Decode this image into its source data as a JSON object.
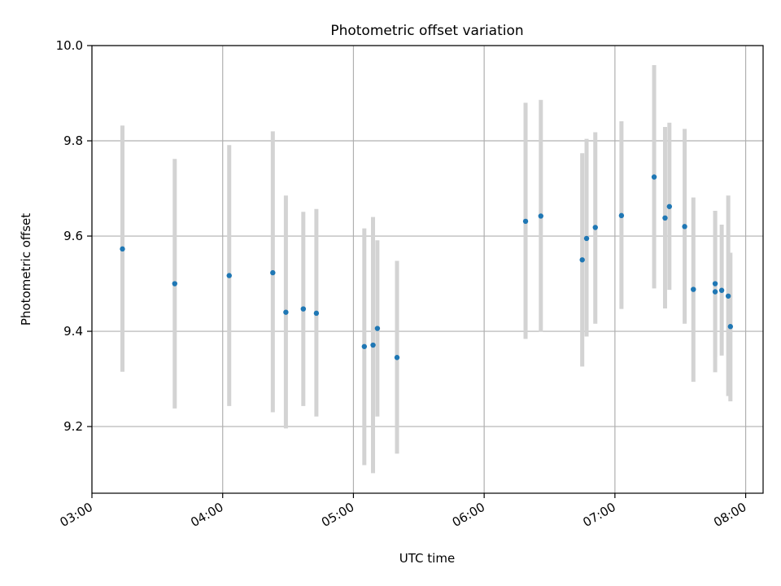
{
  "chart_data": {
    "type": "scatter",
    "title": "Photometric offset variation",
    "xlabel": "UTC time",
    "ylabel": "Photometric offset",
    "xlim": [
      "03:00",
      "08:08"
    ],
    "ylim": [
      9.06,
      10.0
    ],
    "xticks": [
      "03:00",
      "04:00",
      "05:00",
      "06:00",
      "07:00",
      "08:00"
    ],
    "yticks": [
      "9.2",
      "9.4",
      "9.6",
      "9.8",
      "10.0"
    ],
    "grid": true,
    "colors": {
      "marker": "#1f77b4",
      "errorbar": "#d3d3d3",
      "grid": "#b0b0b0"
    },
    "points": [
      {
        "x": "03:14",
        "y": 9.573,
        "ylo": 9.315,
        "yhi": 9.832
      },
      {
        "x": "03:38",
        "y": 9.5,
        "ylo": 9.238,
        "yhi": 9.762
      },
      {
        "x": "04:03",
        "y": 9.517,
        "ylo": 9.243,
        "yhi": 9.791
      },
      {
        "x": "04:23",
        "y": 9.523,
        "ylo": 9.23,
        "yhi": 9.82
      },
      {
        "x": "04:29",
        "y": 9.44,
        "ylo": 9.196,
        "yhi": 9.685
      },
      {
        "x": "04:37",
        "y": 9.447,
        "ylo": 9.243,
        "yhi": 9.651
      },
      {
        "x": "04:43",
        "y": 9.438,
        "ylo": 9.221,
        "yhi": 9.657
      },
      {
        "x": "05:05",
        "y": 9.368,
        "ylo": 9.119,
        "yhi": 9.616
      },
      {
        "x": "05:09",
        "y": 9.371,
        "ylo": 9.102,
        "yhi": 9.64
      },
      {
        "x": "05:11",
        "y": 9.406,
        "ylo": 9.221,
        "yhi": 9.591
      },
      {
        "x": "05:20",
        "y": 9.345,
        "ylo": 9.143,
        "yhi": 9.548
      },
      {
        "x": "06:19",
        "y": 9.631,
        "ylo": 9.384,
        "yhi": 9.88
      },
      {
        "x": "06:26",
        "y": 9.642,
        "ylo": 9.399,
        "yhi": 9.886
      },
      {
        "x": "06:45",
        "y": 9.55,
        "ylo": 9.326,
        "yhi": 9.774
      },
      {
        "x": "06:47",
        "y": 9.595,
        "ylo": 9.389,
        "yhi": 9.804
      },
      {
        "x": "06:51",
        "y": 9.618,
        "ylo": 9.416,
        "yhi": 9.818
      },
      {
        "x": "07:03",
        "y": 9.643,
        "ylo": 9.447,
        "yhi": 9.841
      },
      {
        "x": "07:18",
        "y": 9.724,
        "ylo": 9.49,
        "yhi": 9.959
      },
      {
        "x": "07:23",
        "y": 9.638,
        "ylo": 9.448,
        "yhi": 9.829
      },
      {
        "x": "07:25",
        "y": 9.662,
        "ylo": 9.487,
        "yhi": 9.838
      },
      {
        "x": "07:32",
        "y": 9.62,
        "ylo": 9.416,
        "yhi": 9.825
      },
      {
        "x": "07:36",
        "y": 9.488,
        "ylo": 9.294,
        "yhi": 9.681
      },
      {
        "x": "07:46",
        "y": 9.5,
        "ylo": 9.346,
        "yhi": 9.653
      },
      {
        "x": "07:46",
        "y": 9.483,
        "ylo": 9.314,
        "yhi": 9.653
      },
      {
        "x": "07:49",
        "y": 9.486,
        "ylo": 9.349,
        "yhi": 9.624
      },
      {
        "x": "07:52",
        "y": 9.474,
        "ylo": 9.264,
        "yhi": 9.685
      },
      {
        "x": "07:53",
        "y": 9.41,
        "ylo": 9.253,
        "yhi": 9.565
      }
    ]
  }
}
